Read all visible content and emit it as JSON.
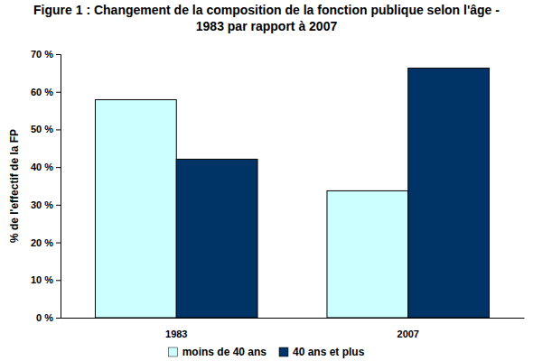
{
  "chart_data": {
    "type": "bar",
    "title": "Figure 1 : Changement de la composition de la fonction publique selon l'âge -\n1983 par rapport à 2007",
    "y_label": "% de l'effectif de la FP",
    "categories": [
      "1983",
      "2007"
    ],
    "series": [
      {
        "name": "moins de 40 ans",
        "color": "#ccffff",
        "values": [
          57.9,
          33.7
        ]
      },
      {
        "name": "40 ans et plus",
        "color": "#003366",
        "values": [
          42.1,
          66.3
        ]
      }
    ],
    "ylim": [
      0,
      70
    ],
    "yticks": [
      {
        "value": 0,
        "label": "0 %"
      },
      {
        "value": 10,
        "label": "10 %"
      },
      {
        "value": 20,
        "label": "20 %"
      },
      {
        "value": 30,
        "label": "30 %"
      },
      {
        "value": 40,
        "label": "40 %"
      },
      {
        "value": 50,
        "label": "50 %"
      },
      {
        "value": 60,
        "label": "60 %"
      },
      {
        "value": 70,
        "label": "70 %"
      }
    ],
    "grid": false,
    "legend": "bottom"
  }
}
